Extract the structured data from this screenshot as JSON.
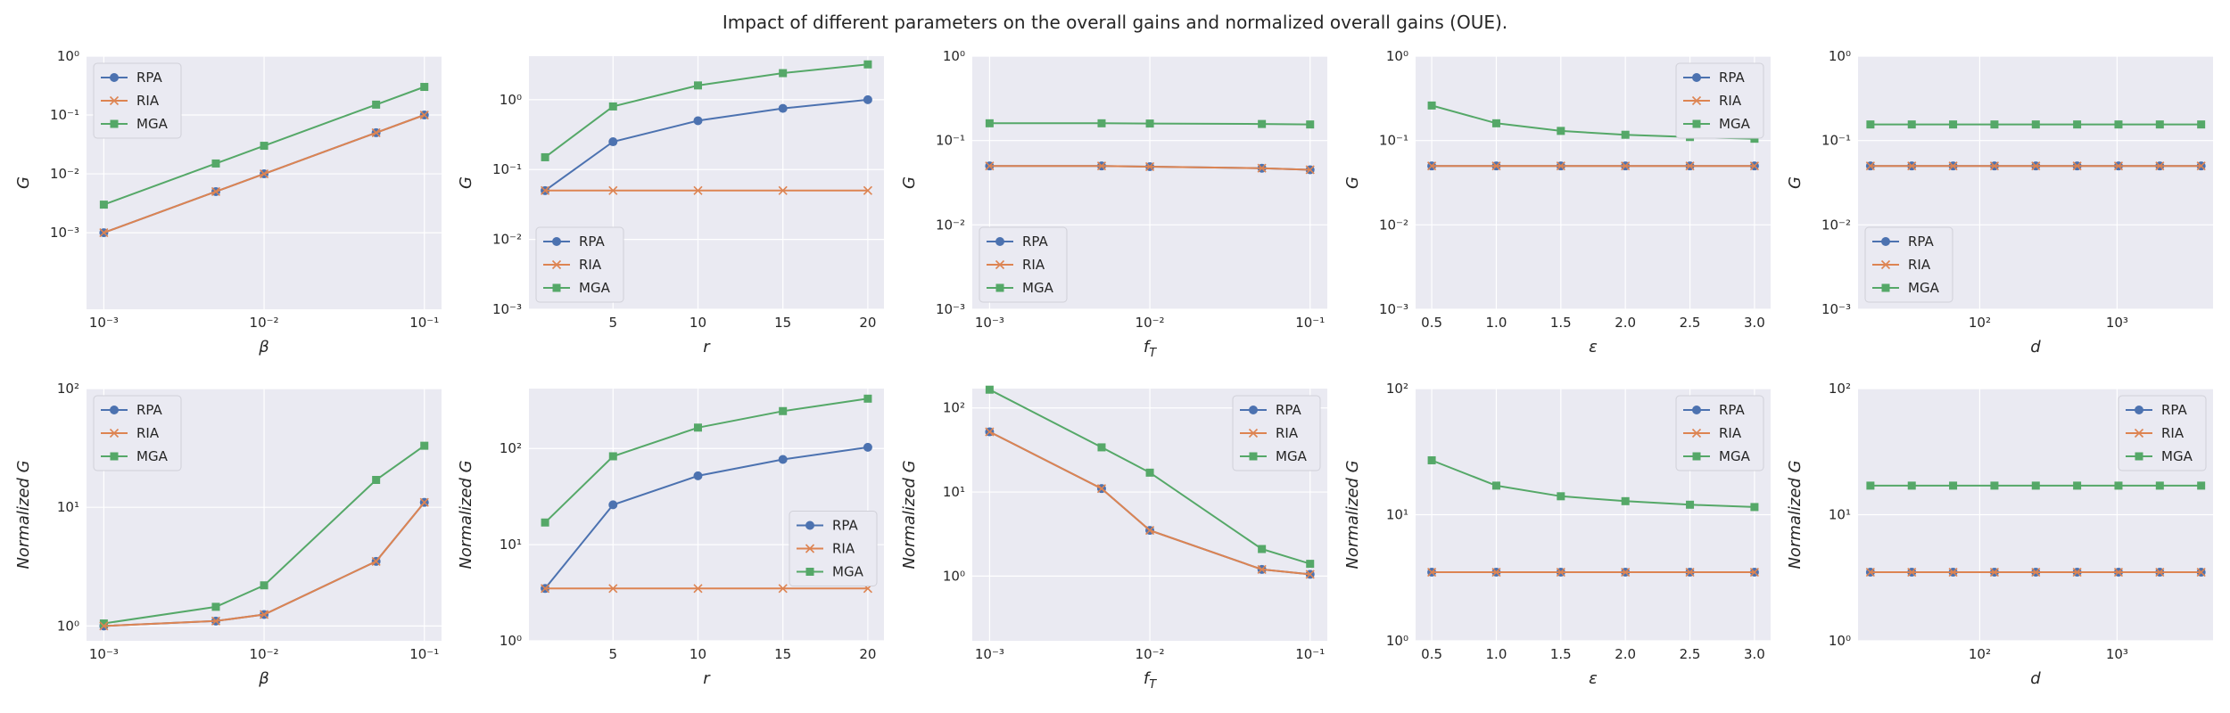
{
  "suptitle": "Impact of different parameters on the overall gains and normalized overall gains (OUE).",
  "colors": {
    "RPA": "#4c72b0",
    "RIA": "#dd8452",
    "MGA": "#55a868",
    "panel_bg": "#eaeaf2",
    "grid": "#ffffff"
  },
  "chart_data": [
    {
      "id": "G_beta",
      "type": "line",
      "ylabel": "G",
      "xlabel": "β",
      "xscale": "log",
      "yscale": "log",
      "xlim": [
        0.00078,
        0.128
      ],
      "ylim": [
        5e-05,
        1
      ],
      "x": [
        0.001,
        0.005,
        0.01,
        0.05,
        0.1
      ],
      "xticks": [
        0.001,
        0.01,
        0.1
      ],
      "xticklabels": [
        "10⁻³",
        "10⁻²",
        "10⁻¹"
      ],
      "yticks": [
        0.001,
        0.01,
        0.1,
        1
      ],
      "yticklabels": [
        "10⁻³",
        "10⁻²",
        "10⁻¹",
        "10⁰"
      ],
      "legend": "upper-left",
      "series": [
        {
          "name": "RPA",
          "values": [
            0.001,
            0.005,
            0.01,
            0.05,
            0.1
          ]
        },
        {
          "name": "RIA",
          "values": [
            0.001,
            0.005,
            0.01,
            0.05,
            0.1
          ]
        },
        {
          "name": "MGA",
          "values": [
            0.003,
            0.015,
            0.03,
            0.15,
            0.3
          ]
        }
      ]
    },
    {
      "id": "G_r",
      "type": "line",
      "ylabel": "G",
      "xlabel": "r",
      "xscale": "linear",
      "yscale": "log",
      "xlim": [
        0.05,
        20.95
      ],
      "ylim": [
        0.001,
        4.2
      ],
      "x": [
        1,
        5,
        10,
        15,
        20
      ],
      "xticks": [
        5,
        10,
        15,
        20
      ],
      "xticklabels": [
        "5",
        "10",
        "15",
        "20"
      ],
      "yticks": [
        0.001,
        0.01,
        0.1,
        1
      ],
      "yticklabels": [
        "10⁻³",
        "10⁻²",
        "10⁻¹",
        "10⁰"
      ],
      "legend": "lower-left",
      "series": [
        {
          "name": "RPA",
          "values": [
            0.05,
            0.25,
            0.5,
            0.75,
            1.0
          ]
        },
        {
          "name": "RIA",
          "values": [
            0.05,
            0.05,
            0.05,
            0.05,
            0.05
          ]
        },
        {
          "name": "MGA",
          "values": [
            0.15,
            0.8,
            1.6,
            2.4,
            3.2
          ]
        }
      ]
    },
    {
      "id": "G_fT",
      "type": "line",
      "ylabel": "G",
      "xlabel": "fT",
      "xscale": "log",
      "yscale": "log",
      "xlim": [
        0.00078,
        0.128
      ],
      "ylim": [
        0.001,
        1
      ],
      "x": [
        0.001,
        0.005,
        0.01,
        0.05,
        0.1
      ],
      "xticks": [
        0.001,
        0.01,
        0.1
      ],
      "xticklabels": [
        "10⁻³",
        "10⁻²",
        "10⁻¹"
      ],
      "yticks": [
        0.001,
        0.01,
        0.1,
        1
      ],
      "yticklabels": [
        "10⁻³",
        "10⁻²",
        "10⁻¹",
        "10⁰"
      ],
      "legend": "lower-left",
      "series": [
        {
          "name": "RPA",
          "values": [
            0.05,
            0.05,
            0.049,
            0.047,
            0.045
          ]
        },
        {
          "name": "RIA",
          "values": [
            0.05,
            0.05,
            0.049,
            0.047,
            0.045
          ]
        },
        {
          "name": "MGA",
          "values": [
            0.16,
            0.16,
            0.159,
            0.157,
            0.155
          ]
        }
      ]
    },
    {
      "id": "G_eps",
      "type": "line",
      "ylabel": "G",
      "xlabel": "ε",
      "xscale": "linear",
      "yscale": "log",
      "xlim": [
        0.375,
        3.125
      ],
      "ylim": [
        0.001,
        1
      ],
      "x": [
        0.5,
        1.0,
        1.5,
        2.0,
        2.5,
        3.0
      ],
      "xticks": [
        0.5,
        1.0,
        1.5,
        2.0,
        2.5,
        3.0
      ],
      "xticklabels": [
        "0.5",
        "1.0",
        "1.5",
        "2.0",
        "2.5",
        "3.0"
      ],
      "yticks": [
        0.001,
        0.01,
        0.1,
        1
      ],
      "yticklabels": [
        "10⁻³",
        "10⁻²",
        "10⁻¹",
        "10⁰"
      ],
      "legend": "upper-right",
      "series": [
        {
          "name": "RPA",
          "values": [
            0.05,
            0.05,
            0.05,
            0.05,
            0.05,
            0.05
          ]
        },
        {
          "name": "RIA",
          "values": [
            0.05,
            0.05,
            0.05,
            0.05,
            0.05,
            0.05
          ]
        },
        {
          "name": "MGA",
          "values": [
            0.26,
            0.16,
            0.13,
            0.117,
            0.11,
            0.105
          ]
        }
      ]
    },
    {
      "id": "G_d",
      "type": "line",
      "ylabel": "G",
      "xlabel": "d",
      "xscale": "log",
      "yscale": "log",
      "xlim": [
        13,
        5000
      ],
      "ylim": [
        0.001,
        1
      ],
      "x": [
        16,
        32,
        64,
        128,
        256,
        512,
        1024,
        2048,
        4096
      ],
      "xticks": [
        100,
        1000
      ],
      "xticklabels": [
        "10²",
        "10³"
      ],
      "yticks": [
        0.001,
        0.01,
        0.1,
        1
      ],
      "yticklabels": [
        "10⁻³",
        "10⁻²",
        "10⁻¹",
        "10⁰"
      ],
      "legend": "lower-left",
      "series": [
        {
          "name": "RPA",
          "values": [
            0.05,
            0.05,
            0.05,
            0.05,
            0.05,
            0.05,
            0.05,
            0.05,
            0.05
          ]
        },
        {
          "name": "RIA",
          "values": [
            0.05,
            0.05,
            0.05,
            0.05,
            0.05,
            0.05,
            0.05,
            0.05,
            0.05
          ]
        },
        {
          "name": "MGA",
          "values": [
            0.155,
            0.155,
            0.155,
            0.155,
            0.155,
            0.155,
            0.155,
            0.155,
            0.155
          ]
        }
      ]
    },
    {
      "id": "NG_beta",
      "type": "line",
      "ylabel": "Normalized G",
      "xlabel": "β",
      "xscale": "log",
      "yscale": "log",
      "xlim": [
        0.00078,
        0.128
      ],
      "ylim": [
        0.75,
        100
      ],
      "x": [
        0.001,
        0.005,
        0.01,
        0.05,
        0.1
      ],
      "xticks": [
        0.001,
        0.01,
        0.1
      ],
      "xticklabels": [
        "10⁻³",
        "10⁻²",
        "10⁻¹"
      ],
      "yticks": [
        1,
        10,
        100
      ],
      "yticklabels": [
        "10⁰",
        "10¹",
        "10²"
      ],
      "legend": "upper-left",
      "series": [
        {
          "name": "RPA",
          "values": [
            1.0,
            1.1,
            1.25,
            3.5,
            11
          ]
        },
        {
          "name": "RIA",
          "values": [
            1.0,
            1.1,
            1.25,
            3.5,
            11
          ]
        },
        {
          "name": "MGA",
          "values": [
            1.05,
            1.45,
            2.2,
            17,
            33
          ]
        }
      ]
    },
    {
      "id": "NG_r",
      "type": "line",
      "ylabel": "Normalized G",
      "xlabel": "r",
      "xscale": "linear",
      "yscale": "log",
      "xlim": [
        0.05,
        20.95
      ],
      "ylim": [
        1,
        420
      ],
      "x": [
        1,
        5,
        10,
        15,
        20
      ],
      "xticks": [
        5,
        10,
        15,
        20
      ],
      "xticklabels": [
        "5",
        "10",
        "15",
        "20"
      ],
      "yticks": [
        1,
        10,
        100
      ],
      "yticklabels": [
        "10⁰",
        "10¹",
        "10²"
      ],
      "legend": "center-right",
      "series": [
        {
          "name": "RPA",
          "values": [
            3.5,
            26,
            52,
            77,
            103
          ]
        },
        {
          "name": "RIA",
          "values": [
            3.5,
            3.5,
            3.5,
            3.5,
            3.5
          ]
        },
        {
          "name": "MGA",
          "values": [
            17,
            83,
            165,
            245,
            330
          ]
        }
      ]
    },
    {
      "id": "NG_fT",
      "type": "line",
      "ylabel": "Normalized G",
      "xlabel": "fT",
      "xscale": "log",
      "yscale": "log",
      "xlim": [
        0.00078,
        0.128
      ],
      "ylim": [
        0.17,
        170
      ],
      "x": [
        0.001,
        0.005,
        0.01,
        0.05,
        0.1
      ],
      "xticks": [
        0.001,
        0.01,
        0.1
      ],
      "xticklabels": [
        "10⁻³",
        "10⁻²",
        "10⁻¹"
      ],
      "yticks": [
        1,
        10,
        100
      ],
      "yticklabels": [
        "10⁰",
        "10¹",
        "10²"
      ],
      "legend": "upper-right",
      "series": [
        {
          "name": "RPA",
          "values": [
            52,
            11,
            3.5,
            1.2,
            1.05
          ]
        },
        {
          "name": "RIA",
          "values": [
            52,
            11,
            3.5,
            1.2,
            1.05
          ]
        },
        {
          "name": "MGA",
          "values": [
            165,
            34,
            17,
            2.1,
            1.4
          ]
        }
      ]
    },
    {
      "id": "NG_eps",
      "type": "line",
      "ylabel": "Normalized G",
      "xlabel": "ε",
      "xscale": "linear",
      "yscale": "log",
      "xlim": [
        0.375,
        3.125
      ],
      "ylim": [
        1,
        100
      ],
      "x": [
        0.5,
        1.0,
        1.5,
        2.0,
        2.5,
        3.0
      ],
      "xticks": [
        0.5,
        1.0,
        1.5,
        2.0,
        2.5,
        3.0
      ],
      "xticklabels": [
        "0.5",
        "1.0",
        "1.5",
        "2.0",
        "2.5",
        "3.0"
      ],
      "yticks": [
        1,
        10,
        100
      ],
      "yticklabels": [
        "10⁰",
        "10¹",
        "10²"
      ],
      "legend": "upper-right",
      "series": [
        {
          "name": "RPA",
          "values": [
            3.5,
            3.5,
            3.5,
            3.5,
            3.5,
            3.5
          ]
        },
        {
          "name": "RIA",
          "values": [
            3.5,
            3.5,
            3.5,
            3.5,
            3.5,
            3.5
          ]
        },
        {
          "name": "MGA",
          "values": [
            27,
            17,
            14,
            12.8,
            12,
            11.5
          ]
        }
      ]
    },
    {
      "id": "NG_d",
      "type": "line",
      "ylabel": "Normalized G",
      "xlabel": "d",
      "xscale": "log",
      "yscale": "log",
      "xlim": [
        13,
        5000
      ],
      "ylim": [
        1,
        100
      ],
      "x": [
        16,
        32,
        64,
        128,
        256,
        512,
        1024,
        2048,
        4096
      ],
      "xticks": [
        100,
        1000
      ],
      "xticklabels": [
        "10²",
        "10³"
      ],
      "yticks": [
        1,
        10,
        100
      ],
      "yticklabels": [
        "10⁰",
        "10¹",
        "10²"
      ],
      "legend": "upper-right",
      "series": [
        {
          "name": "RPA",
          "values": [
            3.5,
            3.5,
            3.5,
            3.5,
            3.5,
            3.5,
            3.5,
            3.5,
            3.5
          ]
        },
        {
          "name": "RIA",
          "values": [
            3.5,
            3.5,
            3.5,
            3.5,
            3.5,
            3.5,
            3.5,
            3.5,
            3.5
          ]
        },
        {
          "name": "MGA",
          "values": [
            17,
            17,
            17,
            17,
            17,
            17,
            17,
            17,
            17
          ]
        }
      ]
    }
  ]
}
